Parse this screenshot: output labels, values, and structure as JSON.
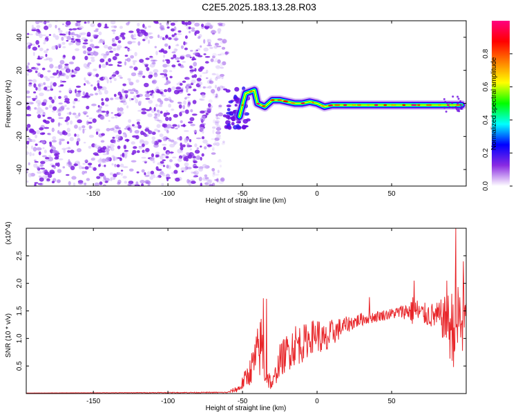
{
  "title": "C2E5.2025.183.13.28.R03",
  "chart_data": [
    {
      "type": "heatmap",
      "xlabel": "Height of straight line (km)",
      "ylabel": "Frequency (Hz)",
      "xlim": [
        -195,
        100
      ],
      "ylim": [
        -50,
        50
      ],
      "x_ticks": [
        -150,
        -100,
        -50,
        0,
        50
      ],
      "y_ticks": [
        -40,
        -20,
        0,
        20,
        40
      ],
      "colorbar": {
        "label": "Normalized spectral amplitude",
        "range": [
          0,
          1
        ],
        "ticks": [
          "0.0",
          "0.2",
          "0.4",
          "0.6",
          "0.8"
        ],
        "colors": [
          "#ffffff",
          "#8a2be2",
          "#0000ff",
          "#00ffff",
          "#00ff00",
          "#ffff00",
          "#ff8000",
          "#ff0000",
          "#ff0080"
        ]
      },
      "features": {
        "noise_region_x": [
          -195,
          -62
        ],
        "noise_amplitude": "0.1-0.2",
        "signal_ridge": [
          [
            -52,
            -8
          ],
          [
            -48,
            6
          ],
          [
            -42,
            8
          ],
          [
            -40,
            0
          ],
          [
            -35,
            -2
          ],
          [
            -30,
            2
          ],
          [
            -25,
            2
          ],
          [
            -20,
            1
          ],
          [
            -15,
            0
          ],
          [
            -10,
            0
          ],
          [
            -5,
            1
          ],
          [
            0,
            0
          ],
          [
            5,
            -2
          ],
          [
            10,
            -1
          ],
          [
            20,
            -1
          ],
          [
            30,
            -1
          ],
          [
            40,
            -1
          ],
          [
            50,
            -1
          ],
          [
            60,
            -1
          ],
          [
            70,
            -1
          ],
          [
            80,
            -1
          ],
          [
            90,
            -1
          ],
          [
            97,
            -1
          ]
        ],
        "ridge_peak_amplitude": 0.9
      }
    },
    {
      "type": "line",
      "xlabel": "Height of straight line (km)",
      "ylabel": "SNR (10 * v/v)",
      "y_multiplier": "(x10^4)",
      "xlim": [
        -195,
        100
      ],
      "ylim": [
        0,
        3.0
      ],
      "x_ticks": [
        -150,
        -100,
        -50,
        0,
        50
      ],
      "y_ticks": [
        0.5,
        1.0,
        1.5,
        2.0,
        2.5
      ],
      "series": [
        {
          "color": "#e8262a",
          "envelope": {
            "x": [
              -195,
              -60,
              -52,
              -45,
              -40,
              -37,
              -35,
              -30,
              -25,
              -20,
              -15,
              -10,
              -5,
              0,
              5,
              10,
              20,
              30,
              40,
              50,
              60,
              65,
              70,
              80,
              85,
              90,
              95,
              100
            ],
            "mean": [
              0.01,
              0.02,
              0.1,
              0.4,
              0.7,
              0.9,
              0.4,
              0.15,
              0.6,
              0.75,
              0.9,
              0.9,
              1.0,
              1.1,
              0.9,
              1.1,
              1.25,
              1.35,
              1.4,
              1.45,
              1.5,
              1.5,
              1.45,
              1.4,
              1.35,
              1.2,
              1.3,
              1.3
            ],
            "spread": [
              0.0,
              0.01,
              0.08,
              0.25,
              0.5,
              0.6,
              0.3,
              0.1,
              0.3,
              0.35,
              0.4,
              0.35,
              0.3,
              0.3,
              0.35,
              0.25,
              0.15,
              0.12,
              0.1,
              0.1,
              0.15,
              0.3,
              0.2,
              0.25,
              0.4,
              0.7,
              0.9,
              0.6
            ]
          },
          "peaks": [
            [
              -36,
              1.73
            ],
            [
              -34,
              1.72
            ],
            [
              -15,
              0.97
            ],
            [
              35,
              1.75
            ],
            [
              65,
              2.05
            ],
            [
              87,
              2.05
            ],
            [
              93,
              3.0
            ],
            [
              98,
              2.4
            ]
          ]
        }
      ]
    }
  ]
}
